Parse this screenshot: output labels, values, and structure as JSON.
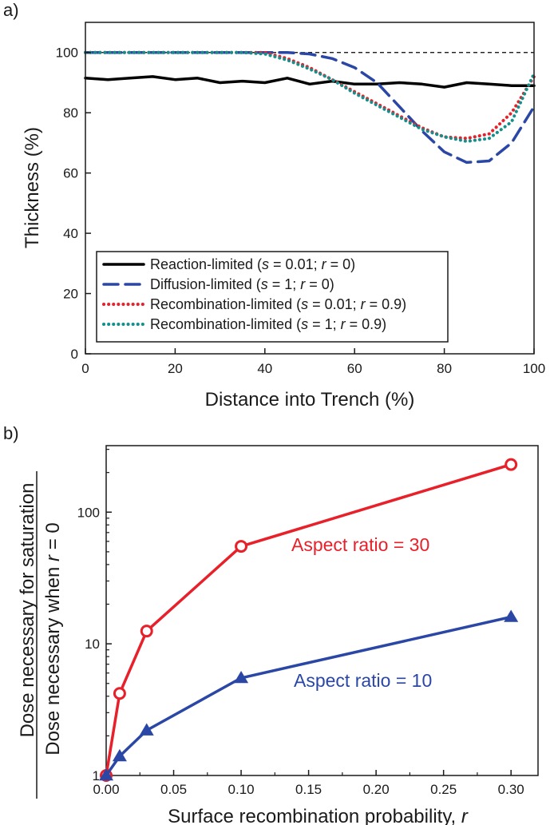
{
  "panel_labels": [
    "a)",
    "b)"
  ],
  "chart_data": [
    {
      "type": "line",
      "panel": "a)",
      "xlabel": "Distance into Trench (%)",
      "ylabel": "Thickness (%)",
      "xlim": [
        0,
        100
      ],
      "ylim": [
        0,
        110
      ],
      "x_ticks": [
        0,
        20,
        40,
        60,
        80,
        100
      ],
      "y_ticks": [
        0,
        20,
        40,
        60,
        80,
        100
      ],
      "reference_line": {
        "y": 100,
        "style": "dashed",
        "color": "#000000"
      },
      "legend": {
        "placement": "lower-left"
      },
      "series": [
        {
          "name": "Reaction-limited (s = 0.01; r = 0)",
          "legend_parts": [
            {
              "t": "Reaction-limited (",
              "i": false
            },
            {
              "t": "s",
              "i": true
            },
            {
              "t": " = 0.01; ",
              "i": false
            },
            {
              "t": "r",
              "i": true
            },
            {
              "t": " = 0)",
              "i": false
            }
          ],
          "color": "#000000",
          "style": "solid",
          "x": [
            0,
            5,
            10,
            15,
            20,
            25,
            30,
            35,
            40,
            45,
            50,
            55,
            60,
            65,
            70,
            75,
            80,
            85,
            90,
            95,
            100
          ],
          "y": [
            91.5,
            91,
            91.5,
            92,
            91,
            91.5,
            90,
            90.5,
            90,
            91.5,
            89.5,
            90.5,
            89.5,
            89.5,
            90,
            89.5,
            88.5,
            90,
            89.5,
            89,
            89
          ]
        },
        {
          "name": "Diffusion-limited (s = 1; r = 0)",
          "legend_parts": [
            {
              "t": "Diffusion-limited (",
              "i": false
            },
            {
              "t": "s",
              "i": true
            },
            {
              "t": " = 1; ",
              "i": false
            },
            {
              "t": "r",
              "i": true
            },
            {
              "t": " = 0)",
              "i": false
            }
          ],
          "color": "#2b47a6",
          "style": "dashed",
          "x": [
            0,
            10,
            20,
            30,
            40,
            45,
            50,
            55,
            60,
            65,
            70,
            75,
            80,
            85,
            90,
            95,
            100
          ],
          "y": [
            100,
            100,
            100,
            100,
            100,
            100,
            99.5,
            98,
            95,
            90,
            82,
            74,
            67,
            63.5,
            64,
            70,
            82
          ]
        },
        {
          "name": "Recombination-limited (s = 0.01; r = 0.9)",
          "legend_parts": [
            {
              "t": "Recombination-limited (",
              "i": false
            },
            {
              "t": "s",
              "i": true
            },
            {
              "t": " = 0.01; ",
              "i": false
            },
            {
              "t": "r",
              "i": true
            },
            {
              "t": " = 0.9)",
              "i": false
            }
          ],
          "color": "#e8202a",
          "style": "dotted",
          "x": [
            0,
            10,
            20,
            30,
            35,
            40,
            45,
            50,
            55,
            60,
            65,
            70,
            75,
            80,
            85,
            90,
            95,
            100
          ],
          "y": [
            100,
            100,
            100,
            100,
            100,
            100,
            98,
            95,
            91,
            87,
            83,
            79,
            75,
            72,
            71.5,
            73,
            80,
            92
          ]
        },
        {
          "name": "Recombination-limited (s = 1; r = 0.9)",
          "legend_parts": [
            {
              "t": "Recombination-limited (",
              "i": false
            },
            {
              "t": "s",
              "i": true
            },
            {
              "t": " = 1; ",
              "i": false
            },
            {
              "t": "r",
              "i": true
            },
            {
              "t": " = 0.9)",
              "i": false
            }
          ],
          "color": "#14908c",
          "style": "dotted",
          "x": [
            0,
            10,
            20,
            30,
            35,
            40,
            45,
            50,
            55,
            60,
            65,
            70,
            75,
            80,
            85,
            90,
            95,
            100
          ],
          "y": [
            100,
            100,
            100,
            100,
            100,
            99.5,
            97.5,
            94.5,
            91,
            86.5,
            82.5,
            78.5,
            74.5,
            72,
            70.5,
            71.5,
            77,
            93
          ]
        }
      ]
    },
    {
      "type": "line",
      "panel": "b)",
      "xlabel_parts": [
        {
          "t": "Surface recombination probability, ",
          "i": false
        },
        {
          "t": "r",
          "i": true
        }
      ],
      "ylabel_top": "Dose necessary for saturation",
      "ylabel_bottom_parts": [
        {
          "t": "Dose necessary when ",
          "i": false
        },
        {
          "t": "r",
          "i": true
        },
        {
          "t": " = 0",
          "i": false
        }
      ],
      "xlim": [
        0,
        0.32
      ],
      "ylim": [
        1,
        320
      ],
      "yscale": "log",
      "x_ticks": [
        "0.00",
        "0.05",
        "0.10",
        "0.15",
        "0.20",
        "0.25",
        "0.30"
      ],
      "y_ticks": [
        1,
        10,
        100
      ],
      "series": [
        {
          "label": "Aspect ratio = 30",
          "color": "#e8202a",
          "marker": "open-circle",
          "x": [
            0,
            0.01,
            0.03,
            0.1,
            0.3
          ],
          "y": [
            1,
            4.2,
            12.5,
            55,
            230
          ]
        },
        {
          "label": "Aspect ratio = 10",
          "color": "#2b47a6",
          "marker": "filled-triangle",
          "x": [
            0,
            0.01,
            0.03,
            0.1,
            0.3
          ],
          "y": [
            1,
            1.4,
            2.2,
            5.5,
            16
          ]
        }
      ]
    }
  ]
}
